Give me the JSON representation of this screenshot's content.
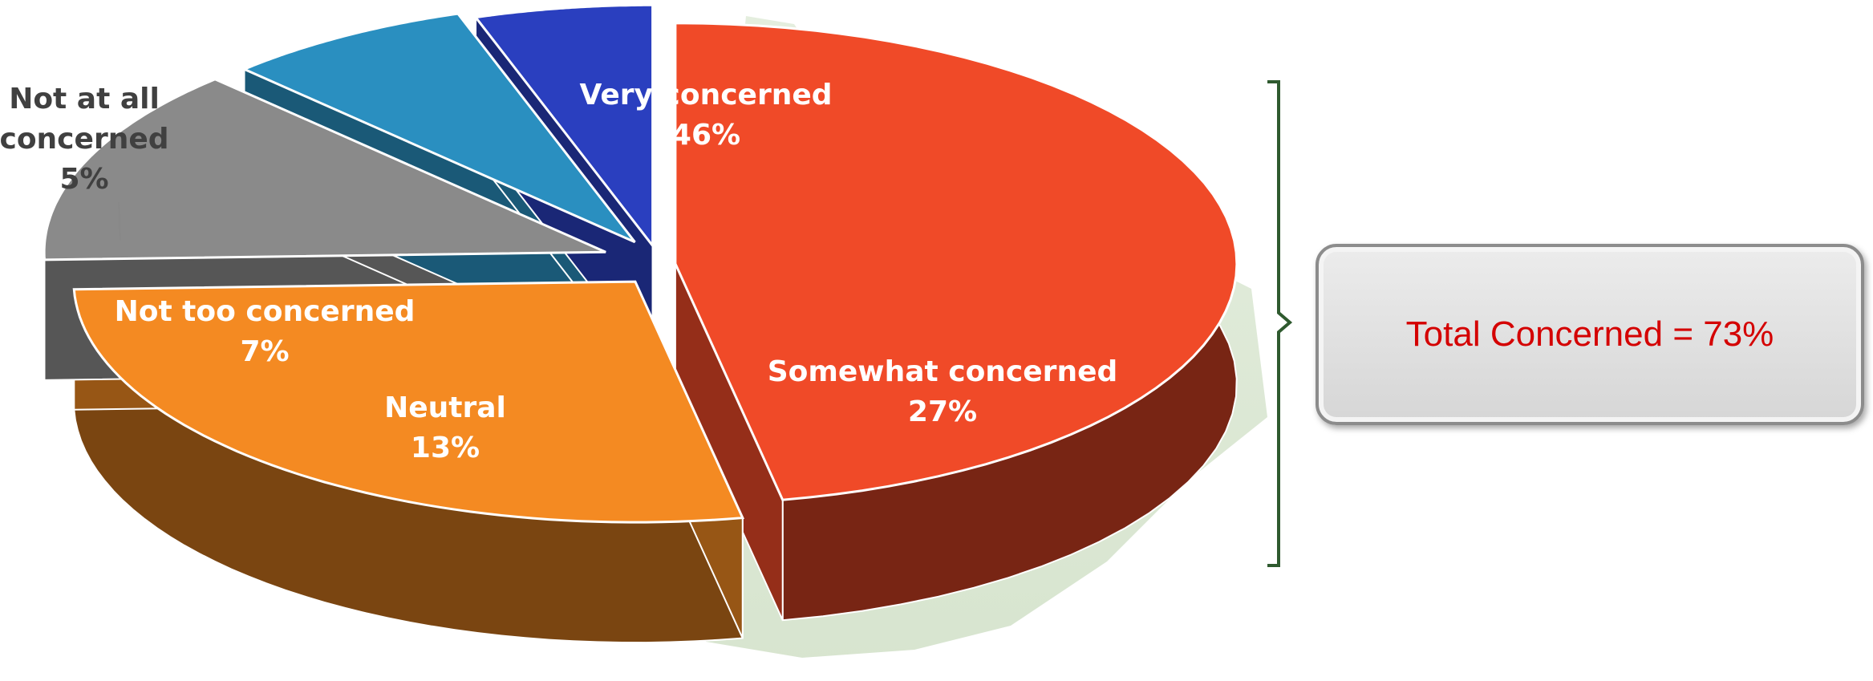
{
  "chart_data": {
    "type": "pie",
    "title": "",
    "slices": [
      {
        "label": "Very concerned",
        "value": 46,
        "display": "46%",
        "color": "#f04a28"
      },
      {
        "label": "Somewhat concerned",
        "value": 27,
        "display": "27%",
        "color": "#f48a22"
      },
      {
        "label": "Neutral",
        "value": 13,
        "display": "13%",
        "color": "#8a8a8a"
      },
      {
        "label": "Not too concerned",
        "value": 7,
        "display": "7%",
        "color": "#2a8fc0"
      },
      {
        "label": "Not at all concerned",
        "value": 5,
        "display": "5%",
        "color": "#2a3fbf"
      }
    ],
    "annotations": [
      "Total Concerned = 73%"
    ],
    "grouping": {
      "label": "Total Concerned = 73%",
      "members": [
        "Very concerned",
        "Somewhat concerned"
      ]
    }
  },
  "summary": {
    "total_concerned": "Total Concerned = 73%",
    "color": "#d40000"
  }
}
